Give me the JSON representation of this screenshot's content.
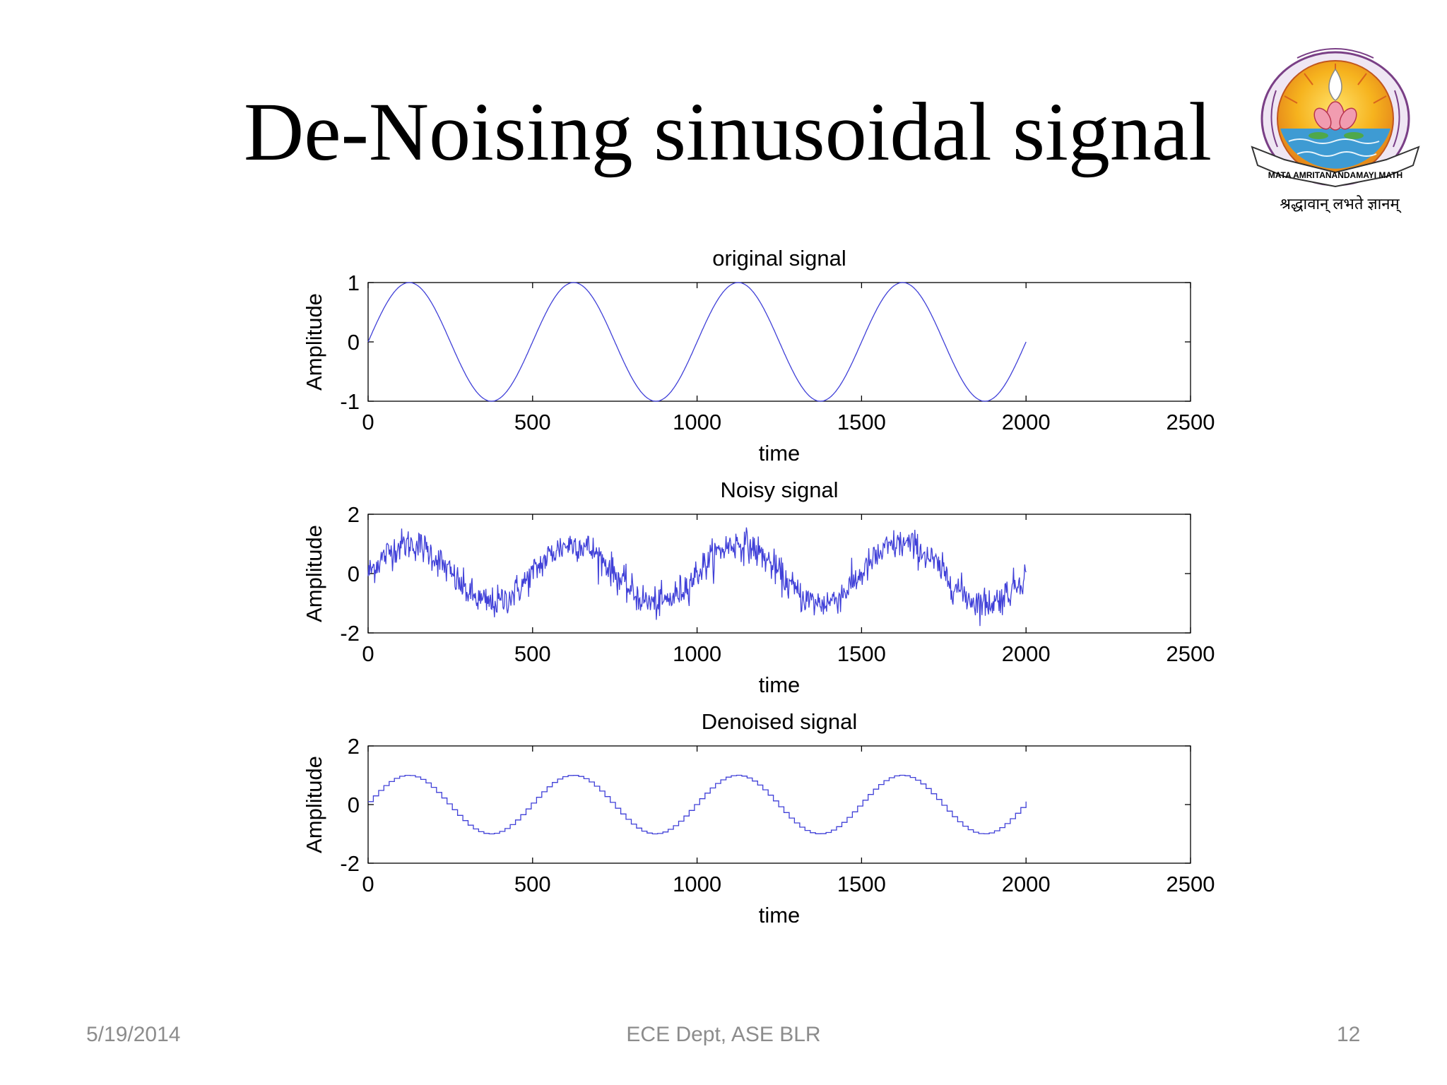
{
  "slide": {
    "title": "De-Noising sinusoidal signal",
    "footer": {
      "date": "5/19/2014",
      "center": "ECE Dept, ASE BLR",
      "page": "12"
    }
  },
  "logo": {
    "icon": "amrita-emblem-logo",
    "ribbon_text": "MATA AMRITANANDAMAYI MATH",
    "motto": "श्रद्धावान् लभते ज्ञानम्"
  },
  "colors": {
    "signal": "#4040d8",
    "axis": "#000000"
  },
  "chart_data": [
    {
      "type": "line",
      "title": "original signal",
      "xlabel": "time",
      "ylabel": "Amplitude",
      "xlim": [
        0,
        2500
      ],
      "ylim": [
        -1,
        1
      ],
      "xticks": [
        0,
        500,
        1000,
        1500,
        2000,
        2500
      ],
      "yticks": [
        -1,
        0,
        1
      ],
      "grid": false,
      "signal": {
        "function": "sin",
        "amplitude": 1,
        "period": 500,
        "x_range": [
          0,
          2000
        ],
        "noise": 0,
        "step": 1
      }
    },
    {
      "type": "line",
      "title": "Noisy signal",
      "xlabel": "time",
      "ylabel": "Amplitude",
      "xlim": [
        0,
        2500
      ],
      "ylim": [
        -2,
        2
      ],
      "xticks": [
        0,
        500,
        1000,
        1500,
        2000,
        2500
      ],
      "yticks": [
        -2,
        0,
        2
      ],
      "grid": false,
      "signal": {
        "function": "sin",
        "amplitude": 1,
        "period": 500,
        "x_range": [
          0,
          2000
        ],
        "noise": 0.5,
        "step": 1
      }
    },
    {
      "type": "line",
      "title": "Denoised signal",
      "xlabel": "time",
      "ylabel": "Amplitude",
      "xlim": [
        0,
        2500
      ],
      "ylim": [
        -2,
        2
      ],
      "xticks": [
        0,
        500,
        1000,
        1500,
        2000,
        2500
      ],
      "yticks": [
        -2,
        0,
        2
      ],
      "grid": false,
      "signal": {
        "function": "sin",
        "amplitude": 1,
        "period": 500,
        "x_range": [
          0,
          2000
        ],
        "noise": 0,
        "step": 16
      }
    }
  ]
}
